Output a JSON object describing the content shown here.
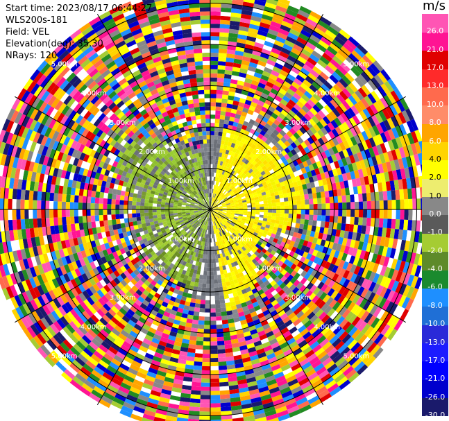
{
  "info": {
    "start_time": "Start time: 2023/08/17 06:44:27",
    "instrument": "WLS200s-181",
    "field": "Field: VEL",
    "elevation": "Elevation(deg): 35.30",
    "nrays": "NRays: 120"
  },
  "chart_data": {
    "type": "ppi",
    "field": "VEL",
    "units": "m/s",
    "range_rings_km": [
      1.0,
      2.0,
      3.0,
      4.0,
      5.0
    ],
    "ring_labels": [
      "1.00km",
      "2.00km",
      "3.00km",
      "4.00km",
      "5.00km"
    ],
    "max_range_km": 5.4,
    "gate_count": 54,
    "ray_count": 120,
    "colorbar": {
      "unit": "m/s",
      "levels": [
        -30.0,
        -26.0,
        -21.0,
        -17.0,
        -13.0,
        -10.0,
        -8.0,
        -6.0,
        -4.0,
        -2.0,
        -1.0,
        0.0,
        1.0,
        2.0,
        4.0,
        6.0,
        8.0,
        10.0,
        13.0,
        17.0,
        21.0,
        26.0
      ],
      "labels": [
        "-30.0",
        "-26.0",
        "-21.0",
        "-17.0",
        "-13.0",
        "-10.0",
        "-8.0",
        "-6.0",
        "-4.0",
        "-2.0",
        "-1.0",
        "0.0",
        "1.0",
        "2.0",
        "4.0",
        "6.0",
        "8.0",
        "10.0",
        "13.0",
        "17.0",
        "21.0",
        "26.0"
      ],
      "colors": [
        "#1a1a6b",
        "#0000cd",
        "#0000ff",
        "#1c1cff",
        "#2a2ad8",
        "#1f6fd6",
        "#1e8fff",
        "#1a8a2e",
        "#5e8a2a",
        "#a5cc33",
        "#5a5a5a",
        "#888888",
        "#eded6f",
        "#ffff00",
        "#ffd400",
        "#ffa500",
        "#ff8c69",
        "#ff6a4d",
        "#ff2a2a",
        "#e00000",
        "#ff1493",
        "#ff55b4"
      ]
    },
    "color_key": {
      "noise": [
        "#ff1493",
        "#0000cd",
        "#ffa500",
        "#228b22",
        "#ffff00",
        "#e00000",
        "#1e8fff",
        "#888888",
        "#a5cc33",
        "#ff6a4d",
        "#1a1a6b",
        "#ff55b4",
        "#ffd400"
      ],
      "near_negative": [
        "#a5cc33",
        "#9acd32",
        "#8fbf2e",
        "#6b8e23",
        "#7a9a33"
      ],
      "near_positive": [
        "#ffff00",
        "#ffee00",
        "#ffe000",
        "#f5f500"
      ],
      "near_zero": [
        "#7a7f88",
        "#868a92",
        "#6c7078"
      ],
      "ring_color": "#000000"
    }
  }
}
